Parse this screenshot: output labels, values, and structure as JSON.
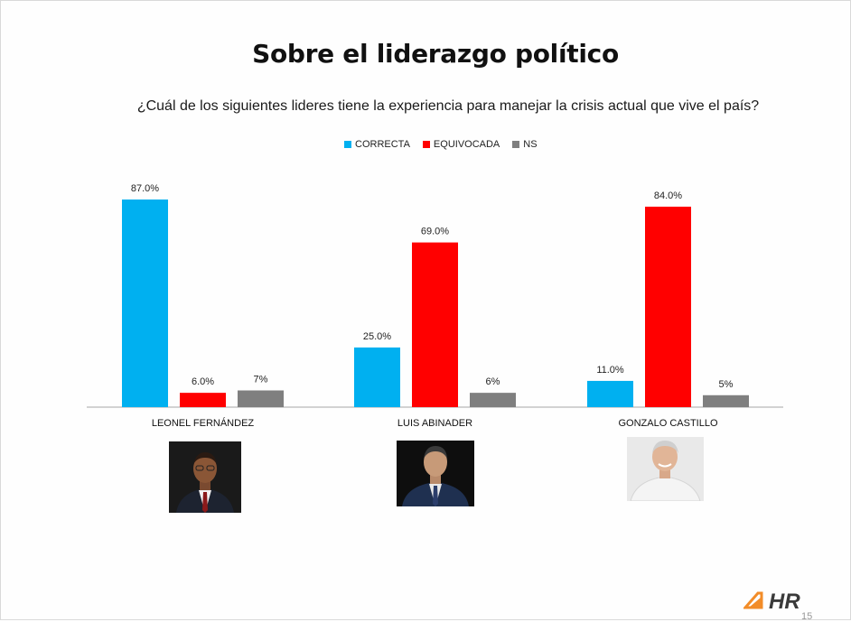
{
  "slide": {
    "title": "Sobre el liderazgo político",
    "question": "¿Cuál de los siguientes lideres tiene la experiencia para manejar la crisis actual que vive el país?",
    "page_number": "15",
    "logo_text": "HR"
  },
  "chart_data": {
    "type": "bar",
    "categories": [
      "LEONEL FERNÁNDEZ",
      "LUIS ABINADER",
      "GONZALO CASTILLO"
    ],
    "series": [
      {
        "name": "CORRECTA",
        "color": "#00b0f0",
        "values": [
          87.0,
          25.0,
          11.0
        ],
        "labels": [
          "87.0%",
          "25.0%",
          "11.0%"
        ]
      },
      {
        "name": "EQUIVOCADA",
        "color": "#ff0000",
        "values": [
          6.0,
          69.0,
          84.0
        ],
        "labels": [
          "6.0%",
          "69.0%",
          "84.0%"
        ]
      },
      {
        "name": "NS",
        "color": "#7f7f7f",
        "values": [
          7,
          6,
          5
        ],
        "labels": [
          "7%",
          "6%",
          "5%"
        ]
      }
    ],
    "ylim": [
      0,
      100
    ],
    "legend_position": "top",
    "grid": false
  },
  "photos": [
    {
      "subject": "leonel-fernandez",
      "background": "#1a1a1a",
      "suit": "#1d2330",
      "tie": "#8b1a1a"
    },
    {
      "subject": "luis-abinader",
      "background": "#0e0e0e",
      "suit": "#1f3050",
      "tie": "#2c3e6b"
    },
    {
      "subject": "gonzalo-castillo",
      "background": "#e9e9e9",
      "suit": "#f4f4f4",
      "tie": "#ffffff"
    }
  ]
}
